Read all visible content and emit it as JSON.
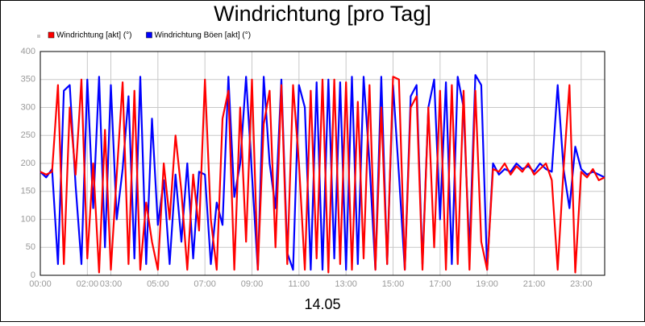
{
  "chart_data": {
    "type": "line",
    "title": "Windrichtung [pro Tag]",
    "x_label": "14.05",
    "x": [
      0,
      0.25,
      0.5,
      0.75,
      1,
      1.25,
      1.5,
      1.75,
      2,
      2.25,
      2.5,
      2.75,
      3,
      3.25,
      3.5,
      3.75,
      4,
      4.25,
      4.5,
      4.75,
      5,
      5.25,
      5.5,
      5.75,
      6,
      6.25,
      6.5,
      6.75,
      7,
      7.25,
      7.5,
      7.75,
      8,
      8.25,
      8.5,
      8.75,
      9,
      9.25,
      9.5,
      9.75,
      10,
      10.25,
      10.5,
      10.75,
      11,
      11.25,
      11.5,
      11.75,
      12,
      12.25,
      12.5,
      12.75,
      13,
      13.25,
      13.5,
      13.75,
      14,
      14.25,
      14.5,
      14.75,
      15,
      15.25,
      15.5,
      15.75,
      16,
      16.25,
      16.5,
      16.75,
      17,
      17.25,
      17.5,
      17.75,
      18,
      18.25,
      18.5,
      18.75,
      19,
      19.25,
      19.5,
      19.75,
      20,
      20.25,
      20.5,
      20.75,
      21,
      21.25,
      21.5,
      21.75,
      22,
      22.25,
      22.5,
      22.75,
      23,
      23.25,
      23.5,
      23.75,
      24
    ],
    "series": [
      {
        "name": "Windrichtung Böen [akt] (°)",
        "color": "#0000ff",
        "values": [
          185,
          175,
          190,
          20,
          330,
          340,
          160,
          20,
          350,
          120,
          355,
          50,
          340,
          100,
          190,
          320,
          30,
          355,
          20,
          280,
          90,
          170,
          20,
          180,
          60,
          200,
          30,
          185,
          180,
          20,
          130,
          90,
          355,
          140,
          200,
          355,
          180,
          10,
          355,
          200,
          120,
          350,
          40,
          10,
          340,
          300,
          10,
          345,
          10,
          350,
          30,
          345,
          10,
          355,
          20,
          355,
          200,
          10,
          355,
          20,
          340,
          180,
          10,
          320,
          340,
          20,
          300,
          350,
          100,
          345,
          20,
          355,
          300,
          40,
          358,
          340,
          10,
          200,
          180,
          190,
          185,
          200,
          190,
          195,
          185,
          200,
          190,
          185,
          340,
          190,
          120,
          230,
          190,
          180,
          185,
          180,
          175
        ]
      },
      {
        "name": "Windrichtung [akt] (°)",
        "color": "#ff0000",
        "values": [
          185,
          180,
          185,
          340,
          20,
          300,
          180,
          350,
          30,
          200,
          5,
          260,
          10,
          180,
          345,
          20,
          330,
          10,
          130,
          60,
          10,
          200,
          100,
          250,
          150,
          10,
          180,
          80,
          350,
          100,
          10,
          280,
          330,
          10,
          300,
          60,
          350,
          10,
          270,
          330,
          50,
          340,
          20,
          340,
          200,
          10,
          330,
          30,
          350,
          5,
          350,
          20,
          345,
          10,
          310,
          30,
          340,
          10,
          300,
          20,
          355,
          350,
          10,
          300,
          320,
          10,
          300,
          50,
          330,
          10,
          340,
          20,
          330,
          10,
          330,
          60,
          10,
          190,
          185,
          200,
          180,
          195,
          185,
          200,
          180,
          190,
          200,
          170,
          10,
          190,
          340,
          5,
          185,
          175,
          190,
          170,
          175
        ]
      }
    ],
    "legend_order": [
      1,
      0
    ],
    "xlim": [
      0,
      24
    ],
    "xticks": [
      {
        "value": 0,
        "label": "00:00"
      },
      {
        "value": 2,
        "label": "02:00"
      },
      {
        "value": 3,
        "label": "03:00"
      },
      {
        "value": 5,
        "label": "05:00"
      },
      {
        "value": 7,
        "label": "07:00"
      },
      {
        "value": 9,
        "label": "09:00"
      },
      {
        "value": 11,
        "label": "11:00"
      },
      {
        "value": 13,
        "label": "13:00"
      },
      {
        "value": 15,
        "label": "15:00"
      },
      {
        "value": 17,
        "label": "17:00"
      },
      {
        "value": 19,
        "label": "19:00"
      },
      {
        "value": 21,
        "label": "21:00"
      },
      {
        "value": 23,
        "label": "23:00"
      }
    ],
    "ylim": [
      0,
      400
    ],
    "yticks": [
      0,
      50,
      100,
      150,
      200,
      250,
      300,
      350,
      400
    ],
    "grid": true
  }
}
